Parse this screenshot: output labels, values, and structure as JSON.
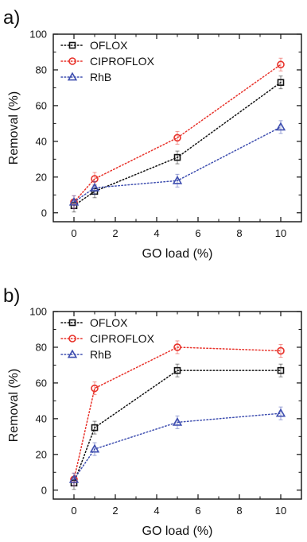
{
  "chart_data": [
    {
      "panel_label": "a)",
      "type": "line",
      "xlabel": "GO load (%)",
      "ylabel": "Removal (%)",
      "xlim": [
        -1,
        11
      ],
      "ylim": [
        -5,
        100
      ],
      "xticks": [
        0,
        2,
        4,
        6,
        8,
        10
      ],
      "yticks": [
        0,
        20,
        40,
        60,
        80,
        100
      ],
      "grid": false,
      "legend_position": "top-left",
      "x": [
        0,
        1,
        5,
        10
      ],
      "series": [
        {
          "name": "OFLOX",
          "color": "#111111",
          "marker": "square",
          "values": [
            4,
            12,
            31,
            73
          ]
        },
        {
          "name": "CIPROFLOX",
          "color": "#e8322a",
          "marker": "circle",
          "values": [
            6,
            19,
            42,
            83
          ]
        },
        {
          "name": "RhB",
          "color": "#3f4fb0",
          "marker": "triangle",
          "values": [
            6,
            14,
            18,
            48
          ]
        }
      ]
    },
    {
      "panel_label": "b)",
      "type": "line",
      "xlabel": "GO load (%)",
      "ylabel": "Removal (%)",
      "xlim": [
        -1,
        11
      ],
      "ylim": [
        -5,
        100
      ],
      "xticks": [
        0,
        2,
        4,
        6,
        8,
        10
      ],
      "yticks": [
        0,
        20,
        40,
        60,
        80,
        100
      ],
      "grid": false,
      "legend_position": "top-left",
      "x": [
        0,
        1,
        5,
        10
      ],
      "series": [
        {
          "name": "OFLOX",
          "color": "#111111",
          "marker": "square",
          "values": [
            4,
            35,
            67,
            67
          ]
        },
        {
          "name": "CIPROFLOX",
          "color": "#e8322a",
          "marker": "circle",
          "values": [
            6,
            57,
            80,
            78
          ]
        },
        {
          "name": "RhB",
          "color": "#3f4fb0",
          "marker": "triangle",
          "values": [
            6,
            23,
            38,
            43
          ]
        }
      ]
    }
  ]
}
